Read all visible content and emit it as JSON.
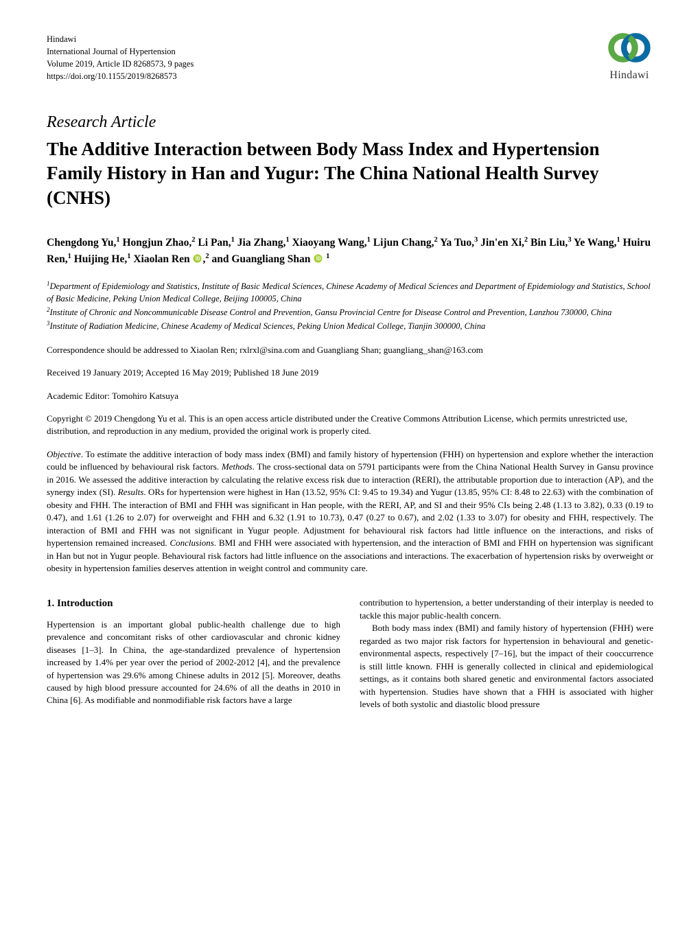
{
  "journal": {
    "publisher": "Hindawi",
    "name": "International Journal of Hypertension",
    "volume_line": "Volume 2019, Article ID 8268573, 9 pages",
    "doi": "https://doi.org/10.1155/2019/8268573"
  },
  "logo": {
    "text": "Hindawi",
    "ring_colors": [
      "#5aa846",
      "#0a6ba3"
    ]
  },
  "article_type": "Research Article",
  "title": "The Additive Interaction between Body Mass Index and Hypertension Family History in Han and Yugur: The China National Health Survey (CNHS)",
  "authors_html": "Chengdong Yu,<sup>1</sup> Hongjun Zhao,<sup>2</sup> Li Pan,<sup>1</sup> Jia Zhang,<sup>1</sup> Xiaoyang Wang,<sup>1</sup> Lijun Chang,<sup>2</sup> Ya Tuo,<sup>3</sup> Jin'en Xi,<sup>2</sup> Bin Liu,<sup>3</sup> Ye Wang,<sup>1</sup> Huiru Ren,<sup>1</sup> Huijing He,<sup>1</sup> Xiaolan Ren <svg class=\"orcid-icon\" viewBox=\"0 0 16 16\"><circle cx=\"8\" cy=\"8\" r=\"7.5\" fill=\"#a6ce39\"/><path d=\"M5.3 4.5h1.2v6.8H5.3zM5.9 2.6a.75.75 0 110 1.5.75.75 0 010-1.5zM7.7 4.5h1.7c2 0 3.3 1.4 3.3 3.4s-1.3 3.4-3.3 3.4H7.7zm1.2 1.1v4.6h.5c1.3 0 2.1-.9 2.1-2.3s-.8-2.3-2.1-2.3z\" fill=\"#fff\"/></svg>,<sup>2</sup> and Guangliang Shan <svg class=\"orcid-icon\" viewBox=\"0 0 16 16\"><circle cx=\"8\" cy=\"8\" r=\"7.5\" fill=\"#a6ce39\"/><path d=\"M5.3 4.5h1.2v6.8H5.3zM5.9 2.6a.75.75 0 110 1.5.75.75 0 010-1.5zM7.7 4.5h1.7c2 0 3.3 1.4 3.3 3.4s-1.3 3.4-3.3 3.4H7.7zm1.2 1.1v4.6h.5c1.3 0 2.1-.9 2.1-2.3s-.8-2.3-2.1-2.3z\" fill=\"#fff\"/></svg> <sup>1</sup>",
  "affiliations_html": "<sup>1</sup>Department of Epidemiology and Statistics, Institute of Basic Medical Sciences, Chinese Academy of Medical Sciences and Department of Epidemiology and Statistics, School of Basic Medicine, Peking Union Medical College, Beijing 100005, China<br><sup>2</sup>Institute of Chronic and Noncommunicable Disease Control and Prevention, Gansu Provincial Centre for Disease Control and Prevention, Lanzhou 730000, China<br><sup>3</sup>Institute of Radiation Medicine, Chinese Academy of Medical Sciences, Peking Union Medical College, Tianjin 300000, China",
  "correspondence": "Correspondence should be addressed to Xiaolan Ren; rxlrxl@sina.com and Guangliang Shan; guangliang_shan@163.com",
  "dates": "Received 19 January 2019; Accepted 16 May 2019; Published 18 June 2019",
  "editor": "Academic Editor: Tomohiro Katsuya",
  "copyright": "Copyright © 2019 Chengdong Yu et al. This is an open access article distributed under the Creative Commons Attribution License, which permits unrestricted use, distribution, and reproduction in any medium, provided the original work is properly cited.",
  "abstract": {
    "objective_label": "Objective",
    "objective_text": ". To estimate the additive interaction of body mass index (BMI) and family history of hypertension (FHH) on hypertension and explore whether the interaction could be influenced by behavioural risk factors. ",
    "methods_label": "Methods",
    "methods_text": ". The cross-sectional data on 5791 participants were from the China National Health Survey in Gansu province in 2016. We assessed the additive interaction by calculating the relative excess risk due to interaction (RERI), the attributable proportion due to interaction (AP), and the synergy index (SI). ",
    "results_label": "Results",
    "results_text": ". ORs for hypertension were highest in Han (13.52, 95% CI: 9.45 to 19.34) and Yugur (13.85, 95% CI: 8.48 to 22.63) with the combination of obesity and FHH. The interaction of BMI and FHH was significant in Han people, with the RERI, AP, and SI and their 95% CIs being 2.48 (1.13 to 3.82), 0.33 (0.19 to 0.47), and 1.61 (1.26 to 2.07) for overweight and FHH and 6.32 (1.91 to 10.73), 0.47 (0.27 to 0.67), and 2.02 (1.33 to 3.07) for obesity and FHH, respectively. The interaction of BMI and FHH was not significant in Yugur people. Adjustment for behavioural risk factors had little influence on the interactions, and risks of hypertension remained increased. ",
    "conclusions_label": "Conclusions",
    "conclusions_text": ". BMI and FHH were associated with hypertension, and the interaction of BMI and FHH on hypertension was significant in Han but not in Yugur people. Behavioural risk factors had little influence on the associations and interactions. The exacerbation of hypertension risks by overweight or obesity in hypertension families deserves attention in weight control and community care."
  },
  "section1": {
    "heading": "1. Introduction",
    "col1": "Hypertension is an important global public-health challenge due to high prevalence and concomitant risks of other cardiovascular and chronic kidney diseases [1–3]. In China, the age-standardized prevalence of hypertension increased by 1.4% per year over the period of 2002-2012 [4], and the prevalence of hypertension was 29.6% among Chinese adults in 2012 [5]. Moreover, deaths caused by high blood pressure accounted for 24.6% of all the deaths in 2010 in China [6]. As modifiable and nonmodifiable risk factors have a large",
    "col2_p1": "contribution to hypertension, a better understanding of their interplay is needed to tackle this major public-health concern.",
    "col2_p2": "Both body mass index (BMI) and family history of hypertension (FHH) were regarded as two major risk factors for hypertension in behavioural and genetic-environmental aspects, respectively [7–16], but the impact of their cooccurrence is still little known. FHH is generally collected in clinical and epidemiological settings, as it contains both shared genetic and environmental factors associated with hypertension. Studies have shown that a FHH is associated with higher levels of both systolic and diastolic blood pressure"
  },
  "colors": {
    "text": "#000000",
    "background": "#ffffff",
    "orcid": "#a6ce39"
  }
}
